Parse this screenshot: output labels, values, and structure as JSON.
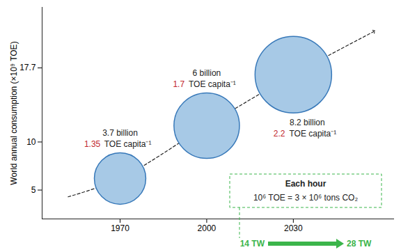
{
  "chart_data": {
    "type": "line",
    "ylabel": "World annual consumption (×10⁹ TOE)",
    "x": [
      1952,
      1970,
      2000,
      2030,
      2058
    ],
    "values": [
      4.3,
      6.2,
      11.7,
      17.0,
      21.5
    ],
    "color": "#222222",
    "line_style": "dashed",
    "xlim": [
      1943,
      2065
    ],
    "xticks": [
      1970,
      2000,
      2030
    ],
    "ylim": [
      2,
      24
    ],
    "yticks": [
      5,
      10,
      17.7
    ],
    "annotations": [
      {
        "x": 1970,
        "y": 6.2,
        "population": 3.7,
        "population_label": "3.7 billion",
        "per_capita": 1.35,
        "unit_label": "TOE capita⁻¹"
      },
      {
        "x": 2000,
        "y": 11.7,
        "population": 6,
        "population_label": "6 billion",
        "per_capita": 1.7,
        "unit_label": "TOE capita⁻¹"
      },
      {
        "x": 2030,
        "y": 17.0,
        "population": 8.2,
        "population_label": "8.2 billion",
        "per_capita": 2.2,
        "unit_label": "TOE capita⁻¹"
      }
    ],
    "box": {
      "title": "Each hour",
      "text": "10⁶ TOE = 3 × 10⁶ tons CO₂"
    },
    "power": {
      "start": "14 TW",
      "end": "28 TW"
    }
  }
}
